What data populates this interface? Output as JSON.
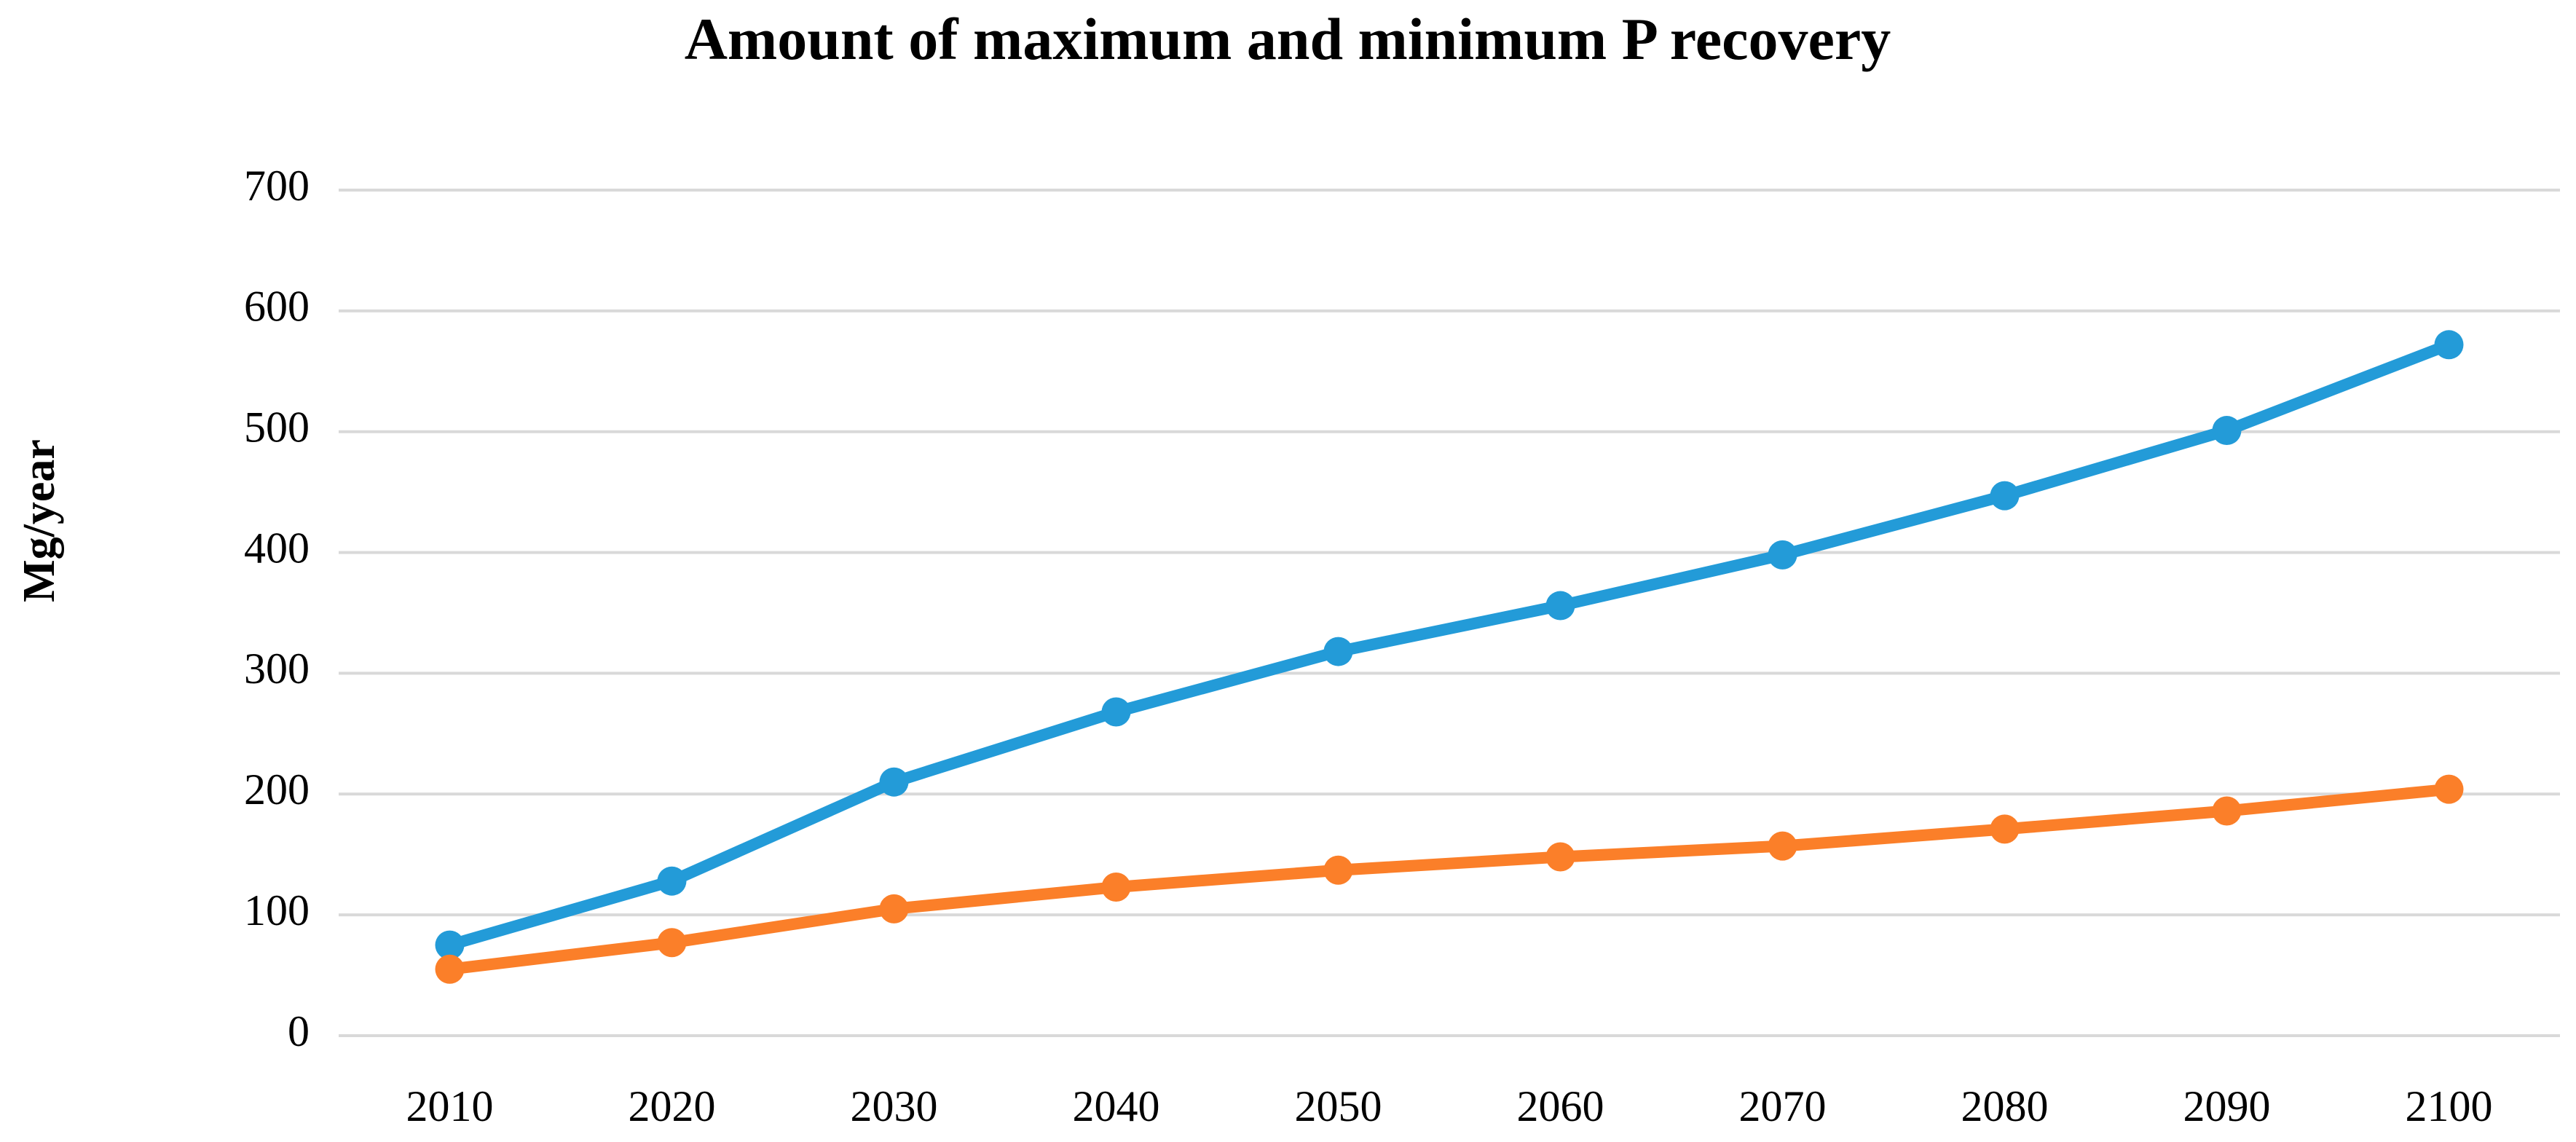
{
  "chart_data": {
    "type": "line",
    "title": "Amount of maximum and minimum P recovery",
    "y_label": "Mg/year",
    "categories": [
      "2010",
      "2020",
      "2030",
      "2040",
      "2050",
      "2060",
      "2070",
      "2080",
      "2090",
      "2100"
    ],
    "series": [
      {
        "color": "#239bd8",
        "values": [
          75,
          128,
          210,
          268,
          318,
          356,
          398,
          447,
          501,
          572
        ]
      },
      {
        "color": "#fb7f29",
        "values": [
          55,
          77,
          105,
          123,
          137,
          148,
          157,
          171,
          186,
          204
        ]
      }
    ],
    "ylim": [
      0,
      700
    ],
    "yticks": [
      0,
      100,
      200,
      300,
      400,
      500,
      600,
      700
    ],
    "grid": true
  }
}
